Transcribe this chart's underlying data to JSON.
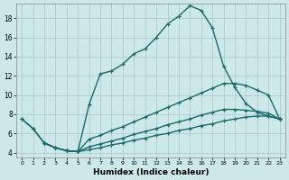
{
  "background_color": "#cce8e8",
  "line_color": "#1a6b6b",
  "grid_color": "#b0cccc",
  "xlabel": "Humidex (Indice chaleur)",
  "xlim": [
    -0.5,
    23.5
  ],
  "ylim": [
    3.5,
    19.5
  ],
  "yticks": [
    4,
    6,
    8,
    10,
    12,
    14,
    16,
    18
  ],
  "xticks": [
    0,
    1,
    2,
    3,
    4,
    5,
    6,
    7,
    8,
    9,
    10,
    11,
    12,
    13,
    14,
    15,
    16,
    17,
    18,
    19,
    20,
    21,
    22,
    23
  ],
  "line_width": 1.0,
  "marker_size": 3.5,
  "curves": [
    {
      "x": [
        0,
        1,
        2,
        3,
        4,
        5,
        6,
        7,
        8,
        9,
        10,
        11,
        12,
        13,
        14,
        15,
        16,
        17,
        18,
        19,
        20,
        21,
        22,
        23
      ],
      "y": [
        7.5,
        6.5,
        5.0,
        4.5,
        4.2,
        4.1,
        9.0,
        12.2,
        12.5,
        13.2,
        14.3,
        14.8,
        16.0,
        17.4,
        18.2,
        19.3,
        18.8,
        17.0,
        13.0,
        10.8,
        9.1,
        8.2,
        7.8,
        7.5
      ]
    },
    {
      "x": [
        0,
        1,
        2,
        3,
        4,
        5,
        6,
        7,
        8,
        9,
        10,
        11,
        12,
        13,
        14,
        15,
        16,
        17,
        18,
        19,
        20,
        21,
        22,
        23
      ],
      "y": [
        7.5,
        6.5,
        5.0,
        4.5,
        4.2,
        4.1,
        5.4,
        5.8,
        6.3,
        6.7,
        7.2,
        7.7,
        8.2,
        8.7,
        9.2,
        9.7,
        10.2,
        10.7,
        11.2,
        11.2,
        11.0,
        10.5,
        10.0,
        7.5
      ]
    },
    {
      "x": [
        2,
        3,
        4,
        5,
        6,
        7,
        8,
        9,
        10,
        11,
        12,
        13,
        14,
        15,
        16,
        17,
        18,
        19,
        20,
        21,
        22,
        23
      ],
      "y": [
        5.0,
        4.5,
        4.2,
        4.1,
        4.6,
        4.9,
        5.2,
        5.5,
        5.9,
        6.2,
        6.5,
        6.9,
        7.2,
        7.5,
        7.9,
        8.2,
        8.5,
        8.5,
        8.4,
        8.3,
        8.1,
        7.5
      ]
    },
    {
      "x": [
        2,
        3,
        4,
        5,
        6,
        7,
        8,
        9,
        10,
        11,
        12,
        13,
        14,
        15,
        16,
        17,
        18,
        19,
        20,
        21,
        22,
        23
      ],
      "y": [
        5.0,
        4.5,
        4.2,
        4.1,
        4.3,
        4.5,
        4.8,
        5.0,
        5.3,
        5.5,
        5.8,
        6.0,
        6.3,
        6.5,
        6.8,
        7.0,
        7.3,
        7.5,
        7.7,
        7.8,
        7.8,
        7.5
      ]
    }
  ]
}
